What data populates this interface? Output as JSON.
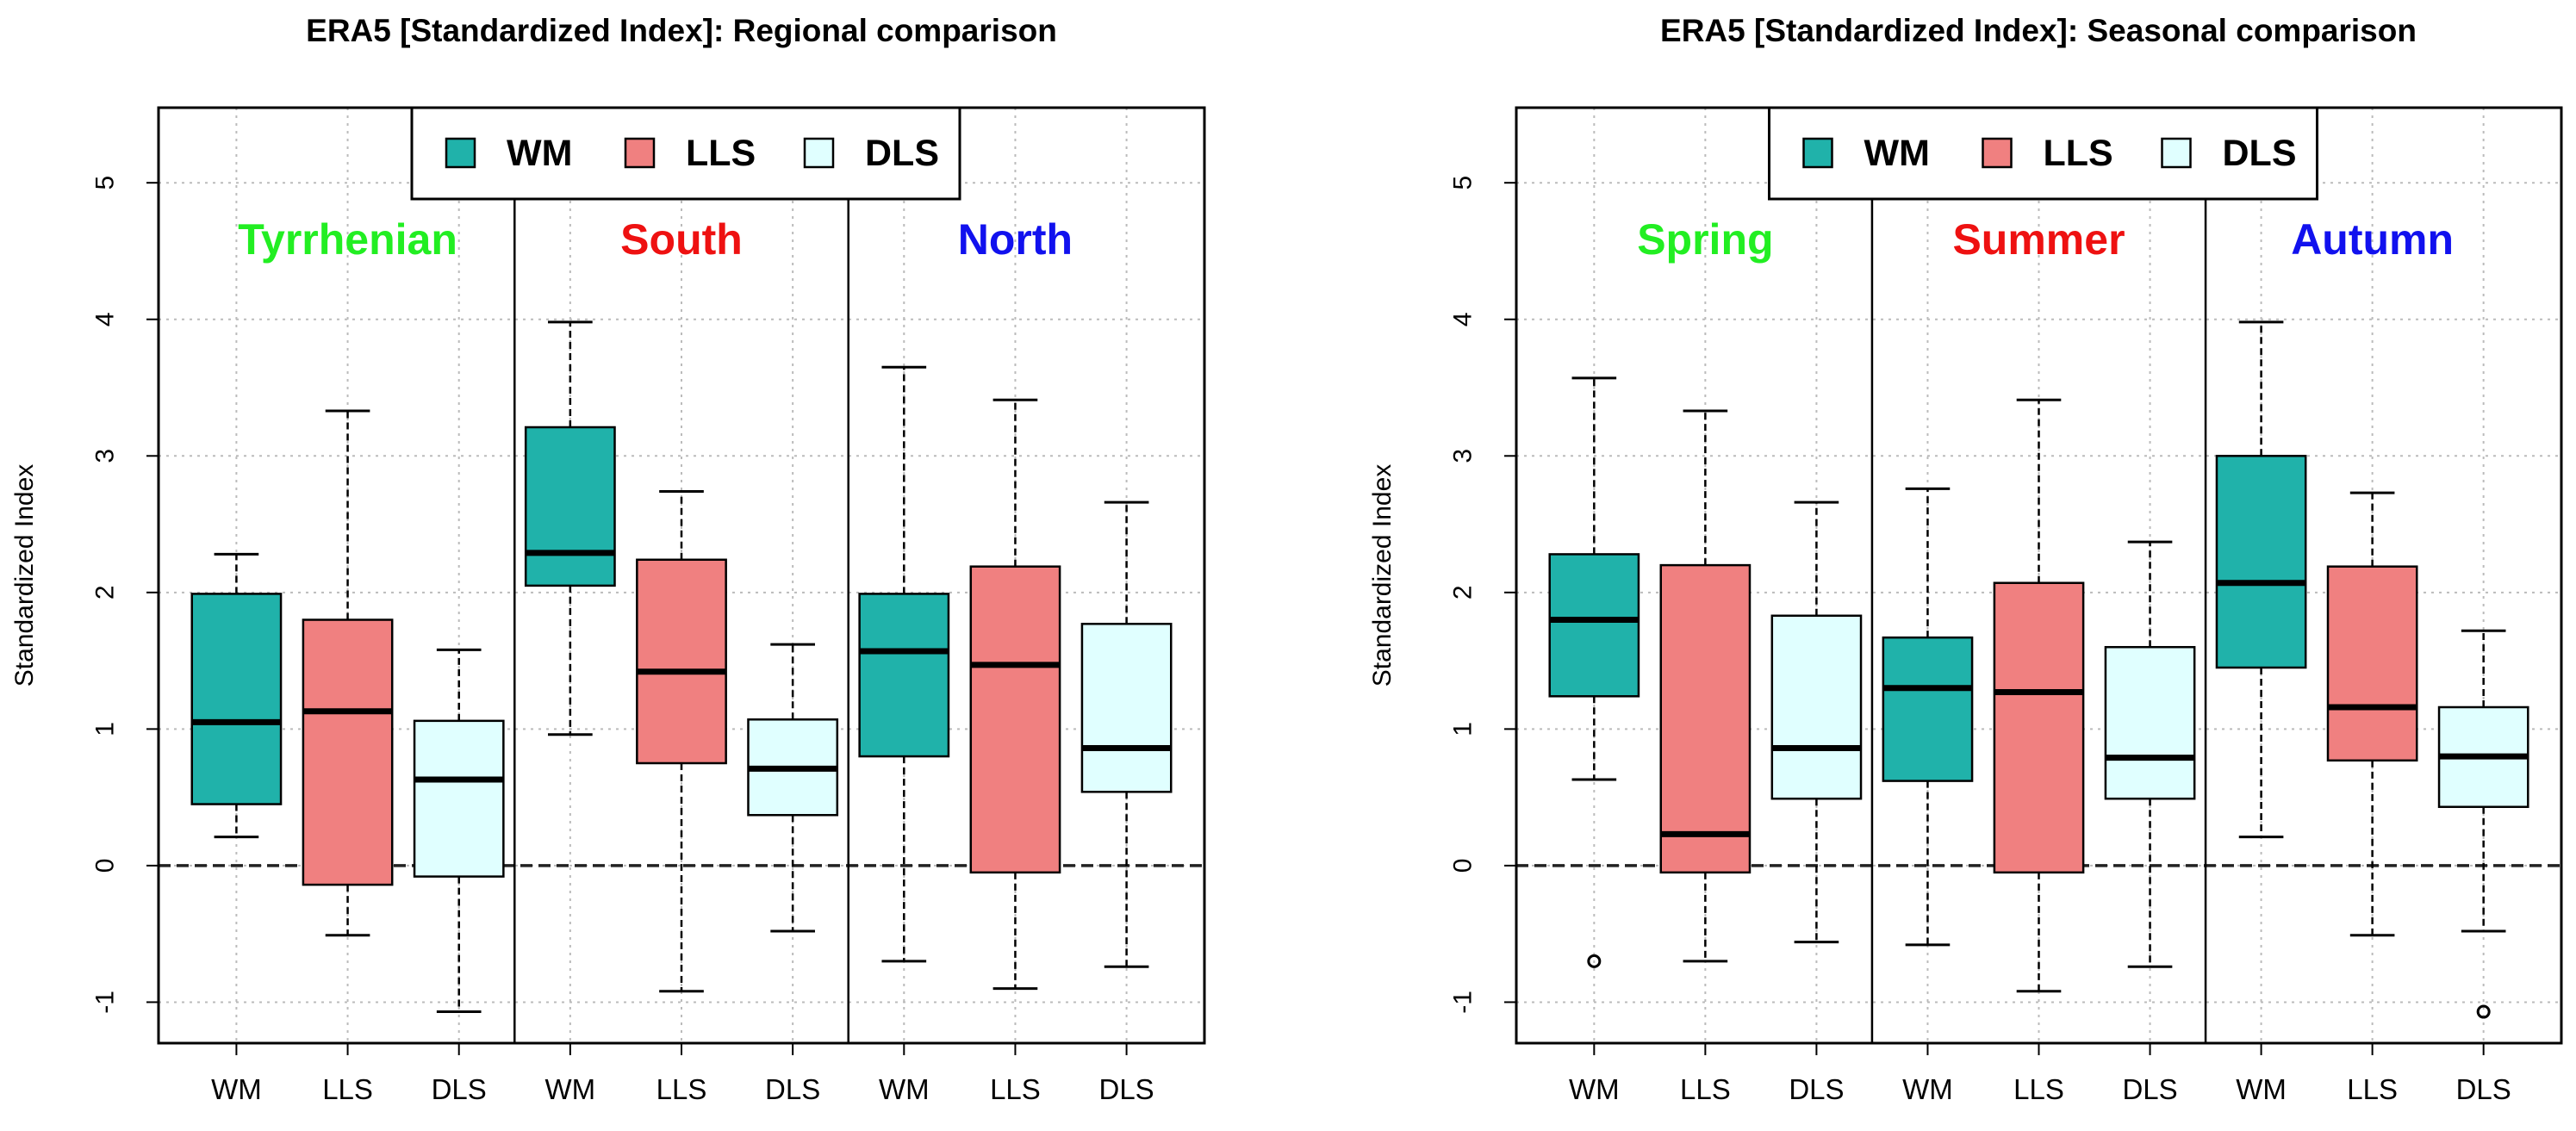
{
  "chart_data": [
    {
      "type": "boxplot",
      "title": "ERA5 [Standardized Index]: Regional comparison",
      "xlabel": "",
      "ylabel": "Standardized Index",
      "ylim": [
        -1.3,
        5.55
      ],
      "yticks": [
        "-1",
        "0",
        "1",
        "2",
        "3",
        "4",
        "5"
      ],
      "grid": true,
      "reference_line": 0,
      "legend_position": "top-center",
      "legend": [
        "WM",
        "LLS",
        "DLS"
      ],
      "group_labels": [
        "Tyrrhenian",
        "South",
        "North"
      ],
      "group_label_colors": [
        "#22ee22",
        "#ee1111",
        "#1111ee"
      ],
      "series_colors": {
        "WM": "#20b2aa",
        "LLS": "#f08080",
        "DLS": "#e0ffff"
      },
      "boxes": [
        {
          "group": "Tyrrhenian",
          "category": "WM",
          "whisker_low": 0.21,
          "q1": 0.45,
          "median": 1.05,
          "q3": 1.99,
          "whisker_high": 2.28,
          "outliers": []
        },
        {
          "group": "Tyrrhenian",
          "category": "LLS",
          "whisker_low": -0.51,
          "q1": -0.14,
          "median": 1.13,
          "q3": 1.8,
          "whisker_high": 3.33,
          "outliers": []
        },
        {
          "group": "Tyrrhenian",
          "category": "DLS",
          "whisker_low": -1.07,
          "q1": -0.08,
          "median": 0.63,
          "q3": 1.06,
          "whisker_high": 1.58,
          "outliers": []
        },
        {
          "group": "South",
          "category": "WM",
          "whisker_low": 0.96,
          "q1": 2.05,
          "median": 2.29,
          "q3": 3.21,
          "whisker_high": 3.98,
          "outliers": []
        },
        {
          "group": "South",
          "category": "LLS",
          "whisker_low": -0.92,
          "q1": 0.75,
          "median": 1.42,
          "q3": 2.24,
          "whisker_high": 2.74,
          "outliers": []
        },
        {
          "group": "South",
          "category": "DLS",
          "whisker_low": -0.48,
          "q1": 0.37,
          "median": 0.71,
          "q3": 1.07,
          "whisker_high": 1.62,
          "outliers": []
        },
        {
          "group": "North",
          "category": "WM",
          "whisker_low": -0.7,
          "q1": 0.8,
          "median": 1.57,
          "q3": 1.99,
          "whisker_high": 3.65,
          "outliers": []
        },
        {
          "group": "North",
          "category": "LLS",
          "whisker_low": -0.9,
          "q1": -0.05,
          "median": 1.47,
          "q3": 2.19,
          "whisker_high": 3.41,
          "outliers": []
        },
        {
          "group": "North",
          "category": "DLS",
          "whisker_low": -0.74,
          "q1": 0.54,
          "median": 0.86,
          "q3": 1.77,
          "whisker_high": 2.66,
          "outliers": []
        }
      ]
    },
    {
      "type": "boxplot",
      "title": "ERA5 [Standardized Index]: Seasonal comparison",
      "xlabel": "",
      "ylabel": "Standardized Index",
      "ylim": [
        -1.3,
        5.55
      ],
      "yticks": [
        "-1",
        "0",
        "1",
        "2",
        "3",
        "4",
        "5"
      ],
      "grid": true,
      "reference_line": 0,
      "legend_position": "top-center",
      "legend": [
        "WM",
        "LLS",
        "DLS"
      ],
      "group_labels": [
        "Spring",
        "Summer",
        "Autumn"
      ],
      "group_label_colors": [
        "#22ee22",
        "#ee1111",
        "#1111ee"
      ],
      "series_colors": {
        "WM": "#20b2aa",
        "LLS": "#f08080",
        "DLS": "#e0ffff"
      },
      "boxes": [
        {
          "group": "Spring",
          "category": "WM",
          "whisker_low": 0.63,
          "q1": 1.24,
          "median": 1.8,
          "q3": 2.28,
          "whisker_high": 3.57,
          "outliers": [
            -0.7
          ]
        },
        {
          "group": "Spring",
          "category": "LLS",
          "whisker_low": -0.7,
          "q1": -0.05,
          "median": 0.23,
          "q3": 2.2,
          "whisker_high": 3.33,
          "outliers": []
        },
        {
          "group": "Spring",
          "category": "DLS",
          "whisker_low": -0.56,
          "q1": 0.49,
          "median": 0.86,
          "q3": 1.83,
          "whisker_high": 2.66,
          "outliers": []
        },
        {
          "group": "Summer",
          "category": "WM",
          "whisker_low": -0.58,
          "q1": 0.62,
          "median": 1.3,
          "q3": 1.67,
          "whisker_high": 2.76,
          "outliers": []
        },
        {
          "group": "Summer",
          "category": "LLS",
          "whisker_low": -0.92,
          "q1": -0.05,
          "median": 1.27,
          "q3": 2.07,
          "whisker_high": 3.41,
          "outliers": []
        },
        {
          "group": "Summer",
          "category": "DLS",
          "whisker_low": -0.74,
          "q1": 0.49,
          "median": 0.79,
          "q3": 1.6,
          "whisker_high": 2.37,
          "outliers": []
        },
        {
          "group": "Autumn",
          "category": "WM",
          "whisker_low": 0.21,
          "q1": 1.45,
          "median": 2.07,
          "q3": 3.0,
          "whisker_high": 3.98,
          "outliers": []
        },
        {
          "group": "Autumn",
          "category": "LLS",
          "whisker_low": -0.51,
          "q1": 0.77,
          "median": 1.16,
          "q3": 2.19,
          "whisker_high": 2.73,
          "outliers": []
        },
        {
          "group": "Autumn",
          "category": "DLS",
          "whisker_low": -0.48,
          "q1": 0.43,
          "median": 0.8,
          "q3": 1.16,
          "whisker_high": 1.72,
          "outliers": [
            -1.07
          ]
        }
      ]
    }
  ]
}
